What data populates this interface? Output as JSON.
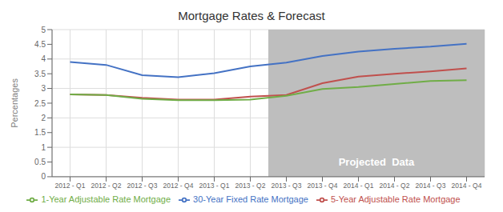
{
  "chart_data": {
    "type": "line",
    "title": "Mortgage Rates & Forecast",
    "y_label": "Percentages",
    "categories": [
      "2012 - Q1",
      "2012 - Q2",
      "2012 - Q3",
      "2012 - Q4",
      "2013 - Q1",
      "2013 - Q2",
      "2013 - Q3",
      "2013 - Q4",
      "2014 - Q1",
      "2014 - Q2",
      "2014 - Q3",
      "2014 - Q4"
    ],
    "series": [
      {
        "name": "30-Year Fixed Rate Mortgage",
        "color": "#4472C4",
        "values": [
          3.9,
          3.8,
          3.45,
          3.38,
          3.52,
          3.75,
          3.88,
          4.1,
          4.25,
          4.35,
          4.42,
          4.52
        ]
      },
      {
        "name": "5-Year Adjustable Rate Mortgage",
        "color": "#C0504D",
        "values": [
          2.8,
          2.78,
          2.68,
          2.62,
          2.62,
          2.72,
          2.78,
          3.18,
          3.4,
          3.5,
          3.58,
          3.68
        ]
      },
      {
        "name": "1-Year Adjustable Rate Mortgage",
        "color": "#70AD47",
        "values": [
          2.8,
          2.78,
          2.65,
          2.6,
          2.6,
          2.62,
          2.75,
          2.98,
          3.05,
          3.15,
          3.25,
          3.28
        ]
      }
    ],
    "ylim": [
      0,
      5
    ],
    "yticks": [
      0,
      0.5,
      1,
      1.5,
      2,
      2.5,
      3,
      3.5,
      4,
      4.5,
      5
    ],
    "grid": true,
    "legend": "bottom",
    "annotations": [
      {
        "text": "Projected  Data",
        "x_start": "2013 - Q3",
        "color": "#BEBEBE"
      }
    ]
  }
}
